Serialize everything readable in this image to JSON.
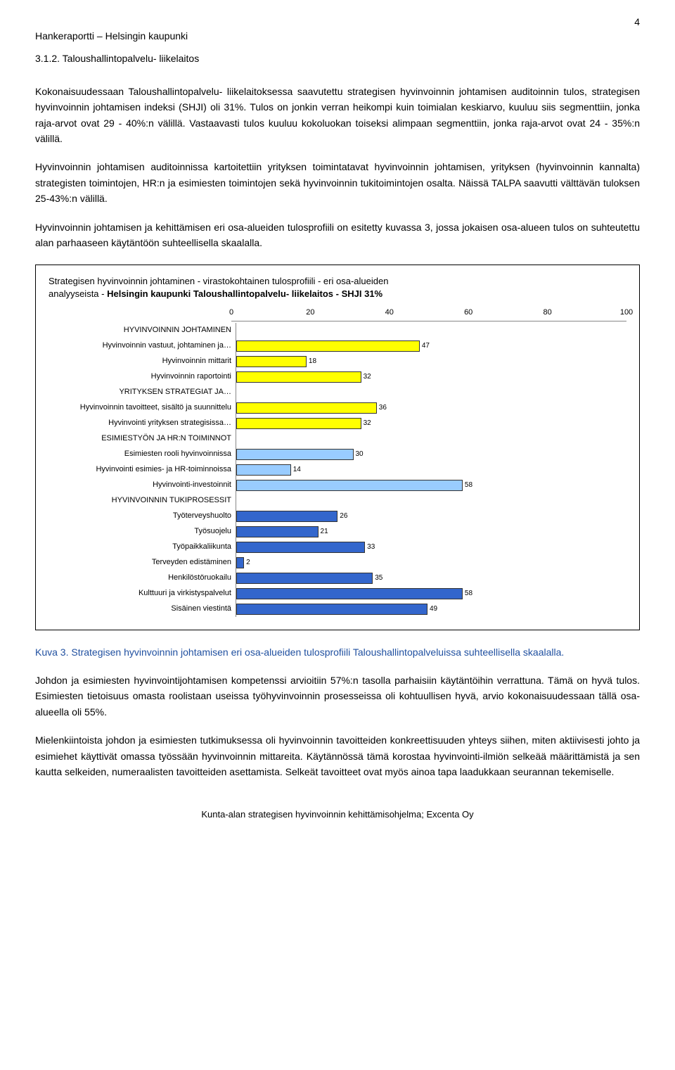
{
  "header": "Hankeraportti – Helsingin kaupunki",
  "page_number": "4",
  "section_number": "3.1.2. Taloushallintopalvelu- liikelaitos",
  "paragraphs": {
    "p1": "Kokonaisuudessaan Taloushallintopalvelu- liikelaitoksessa saavutettu strategisen hyvinvoinnin johtamisen auditoinnin tulos, strategisen hyvinvoinnin johtamisen indeksi (SHJI) oli 31%. Tulos on jonkin verran heikompi kuin toimialan keskiarvo, kuuluu siis segmenttiin, jonka raja-arvot ovat 29 - 40%:n välillä. Vastaavasti tulos kuuluu kokoluokan toiseksi alimpaan segmenttiin, jonka raja-arvot ovat 24 - 35%:n välillä.",
    "p2": "Hyvinvoinnin johtamisen auditoinnissa kartoitettiin yrityksen toimintatavat hyvinvoinnin johtamisen, yrityksen (hyvinvoinnin kannalta) strategisten toimintojen, HR:n ja esimiesten toimintojen sekä hyvinvoinnin tukitoimintojen osalta. Näissä TALPA saavutti välttävän tuloksen 25-43%:n välillä.",
    "p3": "Hyvinvoinnin johtamisen ja kehittämisen eri osa-alueiden tulosprofiili on esitetty kuvassa 3, jossa jokaisen osa-alueen tulos on suhteutettu alan parhaaseen käytäntöön suhteellisella skaalalla.",
    "p4": "Johdon ja esimiesten hyvinvointijohtamisen kompetenssi arvioitiin 57%:n tasolla parhaisiin käytäntöihin verrattuna. Tämä on hyvä tulos. Esimiesten tietoisuus omasta roolistaan useissa työhyvinvoinnin prosesseissa oli kohtuullisen hyvä, arvio kokonaisuudessaan tällä osa-alueella oli 55%.",
    "p5": "Mielenkiintoista johdon ja esimiesten tutkimuksessa oli hyvinvoinnin tavoitteiden konkreettisuuden yhteys siihen, miten aktiivisesti johto ja esimiehet käyttivät omassa työssään hyvinvoinnin mittareita. Käytännössä tämä korostaa hyvinvointi-ilmiön selkeää määrittämistä ja sen kautta selkeiden, numeraalisten tavoitteiden asettamista. Selkeät tavoitteet ovat myös ainoa tapa laadukkaan seurannan tekemiselle."
  },
  "chart": {
    "title_line1": "Strategisen hyvinvoinnin johtaminen - virastokohtainen tulosprofiili - eri osa-alueiden",
    "title_line2_prefix": "analyyseista - ",
    "title_line2_bold": "Helsingin kaupunki Taloushallintopalvelu- liikelaitos - SHJI 31%",
    "xmax": 100,
    "ticks": [
      0,
      20,
      40,
      60,
      80,
      100
    ],
    "colors": {
      "yellow": "#ffff00",
      "lightblue": "#99ccff",
      "blue": "#3366cc",
      "border": "#333333",
      "grid": "#dddddd"
    },
    "rows": [
      {
        "label": "HYVINVOINNIN JOHTAMINEN",
        "value": null,
        "color": null
      },
      {
        "label": "Hyvinvoinnin vastuut, johtaminen ja…",
        "value": 47,
        "color": "yellow"
      },
      {
        "label": "Hyvinvoinnin mittarit",
        "value": 18,
        "color": "yellow"
      },
      {
        "label": "Hyvinvoinnin raportointi",
        "value": 32,
        "color": "yellow"
      },
      {
        "label": "YRITYKSEN STRATEGIAT JA…",
        "value": null,
        "color": null
      },
      {
        "label": "Hyvinvoinnin tavoitteet, sisältö ja suunnittelu",
        "value": 36,
        "color": "yellow"
      },
      {
        "label": "Hyvinvointi yrityksen strategisissa…",
        "value": 32,
        "color": "yellow"
      },
      {
        "label": "ESIMIESTYÖN JA HR:N TOIMINNOT",
        "value": null,
        "color": null
      },
      {
        "label": "Esimiesten rooli hyvinvoinnissa",
        "value": 30,
        "color": "lightblue"
      },
      {
        "label": "Hyvinvointi esimies- ja HR-toiminnoissa",
        "value": 14,
        "color": "lightblue"
      },
      {
        "label": "Hyvinvointi-investoinnit",
        "value": 58,
        "color": "lightblue"
      },
      {
        "label": "HYVINVOINNIN TUKIPROSESSIT",
        "value": null,
        "color": null
      },
      {
        "label": "Työterveyshuolto",
        "value": 26,
        "color": "blue"
      },
      {
        "label": "Työsuojelu",
        "value": 21,
        "color": "blue"
      },
      {
        "label": "Työpaikkaliikunta",
        "value": 33,
        "color": "blue"
      },
      {
        "label": "Terveyden edistäminen",
        "value": 2,
        "color": "blue"
      },
      {
        "label": "Henkilöstöruokailu",
        "value": 35,
        "color": "blue"
      },
      {
        "label": "Kulttuuri ja virkistyspalvelut",
        "value": 58,
        "color": "blue"
      },
      {
        "label": "Sisäinen viestintä",
        "value": 49,
        "color": "blue"
      }
    ]
  },
  "figure_caption": "Kuva 3. Strategisen hyvinvoinnin johtamisen eri osa-alueiden tulosprofiili Taloushallintopalveluissa suhteellisella skaalalla.",
  "footer": "Kunta-alan strategisen hyvinvoinnin kehittämisohjelma; Excenta Oy"
}
